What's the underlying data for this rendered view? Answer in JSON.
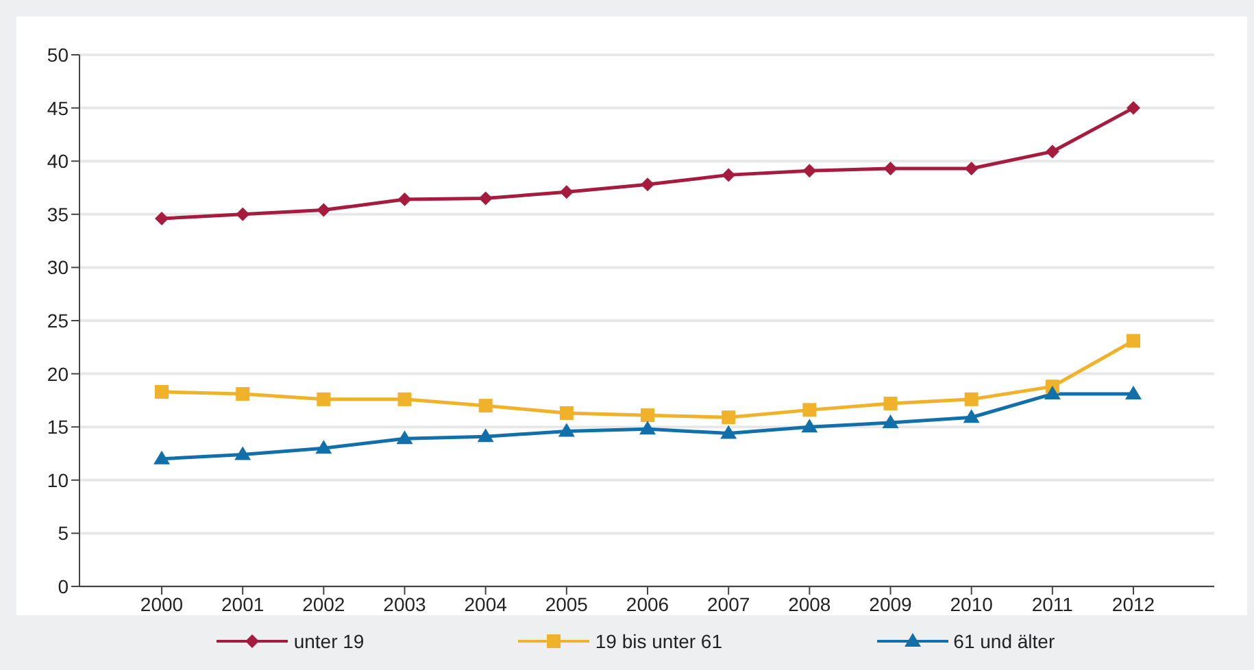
{
  "chart_data": {
    "type": "line",
    "categories": [
      "2000",
      "2001",
      "2002",
      "2003",
      "2004",
      "2005",
      "2006",
      "2007",
      "2008",
      "2009",
      "2010",
      "2011",
      "2012"
    ],
    "series": [
      {
        "name": "unter 19",
        "color": "#a51c3f",
        "marker": "diamond",
        "values": [
          34.6,
          35.0,
          35.4,
          36.4,
          36.5,
          37.1,
          37.8,
          38.7,
          39.1,
          39.3,
          39.3,
          40.9,
          45.0
        ]
      },
      {
        "name": "19 bis unter 61",
        "color": "#f0b12b",
        "marker": "square",
        "values": [
          18.3,
          18.1,
          17.6,
          17.6,
          17.0,
          16.3,
          16.1,
          15.9,
          16.6,
          17.2,
          17.6,
          18.8,
          23.1
        ]
      },
      {
        "name": "61 und älter",
        "color": "#1170aa",
        "marker": "triangle",
        "values": [
          12.0,
          12.4,
          13.0,
          13.9,
          14.1,
          14.6,
          14.8,
          14.4,
          15.0,
          15.4,
          15.9,
          18.1,
          18.1
        ]
      }
    ],
    "ylim": [
      0,
      50
    ],
    "yticks": [
      0,
      5,
      10,
      15,
      20,
      25,
      30,
      35,
      40,
      45,
      50
    ],
    "grid": "y",
    "legend": "bottom"
  }
}
